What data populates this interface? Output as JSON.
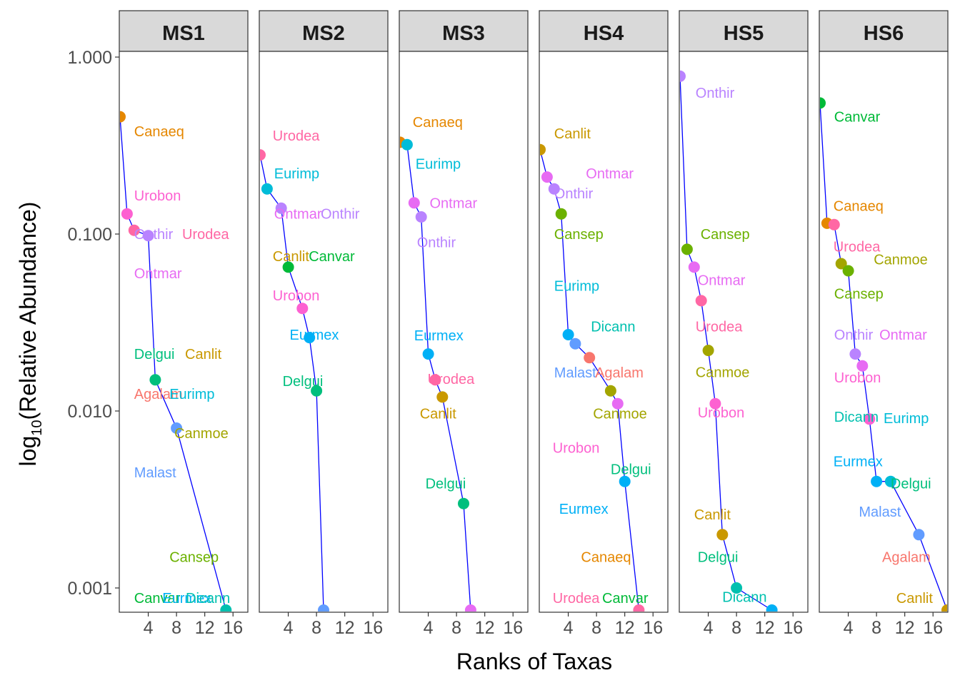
{
  "chart_data": {
    "type": "line",
    "facets": [
      "MS1",
      "MS2",
      "MS3",
      "HS4",
      "HS5",
      "HS6"
    ],
    "xlabel": "Ranks of Taxas",
    "ylabel_prefix": "log",
    "ylabel_sub": "10",
    "ylabel_main": "(Relative Abundance)",
    "yscale": "log10",
    "ylim": [
      0.00077,
      2.0
    ],
    "y_ticks": [
      0.001,
      0.01,
      0.1,
      1
    ],
    "y_tick_labels": [
      "0.001",
      "0.010",
      "0.100",
      "1.000"
    ],
    "xlim": [
      0,
      18
    ],
    "x_ticks": [
      4,
      8,
      12,
      16
    ],
    "x_tick_labels": [
      "4",
      "8",
      "12",
      "16"
    ],
    "line_color": "#0000ff",
    "taxa_colors": {
      "Agalam": "#f8766d",
      "Canaeq": "#e58700",
      "Canlit": "#c99800",
      "Canmoe": "#a3a500",
      "Cansep": "#6bb100",
      "Canvar": "#00ba38",
      "Delgui": "#00bf7d",
      "Dicann": "#00c0af",
      "Eurimp": "#00bcd8",
      "Eurmex": "#00b0f6",
      "Malast": "#619cff",
      "Onthir": "#b983ff",
      "Ontmar": "#e76bf3",
      "Urobon": "#fd61d1",
      "Urodea": "#ff67a4"
    },
    "panels": [
      {
        "facet": "MS1",
        "points": [
          {
            "taxon": "Canaeq",
            "rank": 0,
            "value": 0.46
          },
          {
            "taxon": "Urobon",
            "rank": 1,
            "value": 0.13
          },
          {
            "taxon": "Urodea",
            "rank": 2,
            "value": 0.105
          },
          {
            "taxon": "Onthir",
            "rank": 4,
            "value": 0.098
          },
          {
            "taxon": "Delgui",
            "rank": 5,
            "value": 0.015
          },
          {
            "taxon": "Malast",
            "rank": 8,
            "value": 0.008
          },
          {
            "taxon": "Dicann",
            "rank": 15,
            "value": 0.00075
          }
        ],
        "labels": [
          {
            "text": "Canaeq",
            "rank": 2,
            "value": 0.38,
            "taxon": "Canaeq"
          },
          {
            "text": "Urobon",
            "rank": 2,
            "value": 0.165,
            "taxon": "Urobon"
          },
          {
            "text": "Onthir",
            "rank": 2,
            "value": 0.1,
            "taxon": "Onthir"
          },
          {
            "text": "Urodea",
            "rank": 8.8,
            "value": 0.1,
            "taxon": "Urodea"
          },
          {
            "text": "Ontmar",
            "rank": 2,
            "value": 0.06,
            "taxon": "Ontmar"
          },
          {
            "text": "Delgui",
            "rank": 2,
            "value": 0.021,
            "taxon": "Delgui"
          },
          {
            "text": "Canlit",
            "rank": 9.2,
            "value": 0.021,
            "taxon": "Canlit"
          },
          {
            "text": "Agalam",
            "rank": 2,
            "value": 0.0125,
            "taxon": "Agalam"
          },
          {
            "text": "Eurimp",
            "rank": 7,
            "value": 0.0125,
            "taxon": "Eurimp"
          },
          {
            "text": "Canmoe",
            "rank": 7.7,
            "value": 0.0075,
            "taxon": "Canmoe"
          },
          {
            "text": "Malast",
            "rank": 2,
            "value": 0.0045,
            "taxon": "Malast"
          },
          {
            "text": "Cansep",
            "rank": 7,
            "value": 0.0015,
            "taxon": "Cansep"
          },
          {
            "text": "Canvar",
            "rank": 2,
            "value": 0.00088,
            "taxon": "Canvar"
          },
          {
            "text": "Eurmex",
            "rank": 6,
            "value": 0.00088,
            "taxon": "Eurmex"
          },
          {
            "text": "Dicann",
            "rank": 9.3,
            "value": 0.00088,
            "taxon": "Dicann"
          }
        ]
      },
      {
        "facet": "MS2",
        "points": [
          {
            "taxon": "Urodea",
            "rank": 0,
            "value": 0.28
          },
          {
            "taxon": "Eurimp",
            "rank": 1,
            "value": 0.18
          },
          {
            "taxon": "Onthir",
            "rank": 3,
            "value": 0.14
          },
          {
            "taxon": "Canvar",
            "rank": 4,
            "value": 0.065
          },
          {
            "taxon": "Urobon",
            "rank": 6,
            "value": 0.038
          },
          {
            "taxon": "Eurmex",
            "rank": 7,
            "value": 0.026
          },
          {
            "taxon": "Delgui",
            "rank": 8,
            "value": 0.013
          },
          {
            "taxon": "Malast",
            "rank": 9,
            "value": 0.00075
          }
        ],
        "labels": [
          {
            "text": "Urodea",
            "rank": 1.8,
            "value": 0.36,
            "taxon": "Urodea"
          },
          {
            "text": "Eurimp",
            "rank": 2,
            "value": 0.22,
            "taxon": "Eurimp"
          },
          {
            "text": "Ontmar",
            "rank": 2,
            "value": 0.13,
            "taxon": "Ontmar"
          },
          {
            "text": "Onthir",
            "rank": 8.6,
            "value": 0.13,
            "taxon": "Onthir"
          },
          {
            "text": "Canlit",
            "rank": 1.8,
            "value": 0.075,
            "taxon": "Canlit"
          },
          {
            "text": "Canvar",
            "rank": 6.9,
            "value": 0.075,
            "taxon": "Canvar"
          },
          {
            "text": "Urobon",
            "rank": 1.8,
            "value": 0.045,
            "taxon": "Urobon"
          },
          {
            "text": "Eurmex",
            "rank": 4.2,
            "value": 0.027,
            "taxon": "Eurmex"
          },
          {
            "text": "Delgui",
            "rank": 3.2,
            "value": 0.0148,
            "taxon": "Delgui"
          }
        ]
      },
      {
        "facet": "MS3",
        "points": [
          {
            "taxon": "Canaeq",
            "rank": 0,
            "value": 0.33
          },
          {
            "taxon": "Eurimp",
            "rank": 1,
            "value": 0.32
          },
          {
            "taxon": "Ontmar",
            "rank": 2,
            "value": 0.15
          },
          {
            "taxon": "Onthir",
            "rank": 3,
            "value": 0.125
          },
          {
            "taxon": "Eurmex",
            "rank": 4,
            "value": 0.021
          },
          {
            "taxon": "Urodea",
            "rank": 5,
            "value": 0.015
          },
          {
            "taxon": "Canlit",
            "rank": 6,
            "value": 0.012
          },
          {
            "taxon": "Delgui",
            "rank": 9,
            "value": 0.003
          },
          {
            "taxon": "Ontmar",
            "rank": 10,
            "value": 0.00075
          }
        ],
        "labels": [
          {
            "text": "Canaeq",
            "rank": 1.8,
            "value": 0.43,
            "taxon": "Canaeq"
          },
          {
            "text": "Eurimp",
            "rank": 2.2,
            "value": 0.25,
            "taxon": "Eurimp"
          },
          {
            "text": "Ontmar",
            "rank": 4.2,
            "value": 0.15,
            "taxon": "Ontmar"
          },
          {
            "text": "Onthir",
            "rank": 2.4,
            "value": 0.09,
            "taxon": "Onthir"
          },
          {
            "text": "Eurmex",
            "rank": 2,
            "value": 0.0267,
            "taxon": "Eurmex"
          },
          {
            "text": "Urodea",
            "rank": 3.9,
            "value": 0.0152,
            "taxon": "Urodea"
          },
          {
            "text": "Canlit",
            "rank": 2.8,
            "value": 0.0097,
            "taxon": "Canlit"
          },
          {
            "text": "Delgui",
            "rank": 3.6,
            "value": 0.0039,
            "taxon": "Delgui"
          }
        ]
      },
      {
        "facet": "HS4",
        "points": [
          {
            "taxon": "Canlit",
            "rank": 0,
            "value": 0.3
          },
          {
            "taxon": "Ontmar",
            "rank": 1,
            "value": 0.21
          },
          {
            "taxon": "Onthir",
            "rank": 2,
            "value": 0.18
          },
          {
            "taxon": "Cansep",
            "rank": 3,
            "value": 0.13
          },
          {
            "taxon": "Eurmex",
            "rank": 4,
            "value": 0.027
          },
          {
            "taxon": "Malast",
            "rank": 5,
            "value": 0.024
          },
          {
            "taxon": "Agalam",
            "rank": 7,
            "value": 0.02
          },
          {
            "taxon": "Canmoe",
            "rank": 10,
            "value": 0.013
          },
          {
            "taxon": "Ontmar",
            "rank": 11,
            "value": 0.011
          },
          {
            "taxon": "Eurmex",
            "rank": 12,
            "value": 0.004
          },
          {
            "taxon": "Urodea",
            "rank": 14,
            "value": 0.00075
          }
        ],
        "labels": [
          {
            "text": "Canlit",
            "rank": 2,
            "value": 0.37,
            "taxon": "Canlit"
          },
          {
            "text": "Ontmar",
            "rank": 6.5,
            "value": 0.22,
            "taxon": "Ontmar"
          },
          {
            "text": "Onthir",
            "rank": 2,
            "value": 0.17,
            "taxon": "Onthir"
          },
          {
            "text": "Cansep",
            "rank": 2,
            "value": 0.1,
            "taxon": "Cansep"
          },
          {
            "text": "Eurimp",
            "rank": 2,
            "value": 0.051,
            "taxon": "Eurimp"
          },
          {
            "text": "Dicann",
            "rank": 7.2,
            "value": 0.03,
            "taxon": "Dicann"
          },
          {
            "text": "Malast",
            "rank": 2,
            "value": 0.0165,
            "taxon": "Malast"
          },
          {
            "text": "Agalam",
            "rank": 7.8,
            "value": 0.0165,
            "taxon": "Agalam"
          },
          {
            "text": "Canmoe",
            "rank": 7.5,
            "value": 0.0097,
            "taxon": "Canmoe"
          },
          {
            "text": "Urobon",
            "rank": 1.8,
            "value": 0.0062,
            "taxon": "Urobon"
          },
          {
            "text": "Delgui",
            "rank": 10,
            "value": 0.0047,
            "taxon": "Delgui"
          },
          {
            "text": "Eurmex",
            "rank": 2.7,
            "value": 0.0028,
            "taxon": "Eurmex"
          },
          {
            "text": "Canaeq",
            "rank": 5.8,
            "value": 0.0015,
            "taxon": "Canaeq"
          },
          {
            "text": "Urodea",
            "rank": 1.8,
            "value": 0.00088,
            "taxon": "Urodea"
          },
          {
            "text": "Canvar",
            "rank": 8.8,
            "value": 0.00088,
            "taxon": "Canvar"
          }
        ]
      },
      {
        "facet": "HS5",
        "points": [
          {
            "taxon": "Onthir",
            "rank": 0,
            "value": 0.78
          },
          {
            "taxon": "Cansep",
            "rank": 1,
            "value": 0.082
          },
          {
            "taxon": "Ontmar",
            "rank": 2,
            "value": 0.065
          },
          {
            "taxon": "Urodea",
            "rank": 3,
            "value": 0.042
          },
          {
            "taxon": "Canmoe",
            "rank": 4,
            "value": 0.022
          },
          {
            "taxon": "Urobon",
            "rank": 5,
            "value": 0.011
          },
          {
            "taxon": "Canlit",
            "rank": 6,
            "value": 0.002
          },
          {
            "taxon": "Dicann",
            "rank": 8,
            "value": 0.001
          },
          {
            "taxon": "Eurmex",
            "rank": 13,
            "value": 0.00075
          }
        ],
        "labels": [
          {
            "text": "Onthir",
            "rank": 2.2,
            "value": 0.63,
            "taxon": "Onthir"
          },
          {
            "text": "Cansep",
            "rank": 2.9,
            "value": 0.1,
            "taxon": "Cansep"
          },
          {
            "text": "Ontmar",
            "rank": 2.5,
            "value": 0.055,
            "taxon": "Ontmar"
          },
          {
            "text": "Urodea",
            "rank": 2.2,
            "value": 0.03,
            "taxon": "Urodea"
          },
          {
            "text": "Canmoe",
            "rank": 2.2,
            "value": 0.0166,
            "taxon": "Canmoe"
          },
          {
            "text": "Urobon",
            "rank": 2.5,
            "value": 0.0098,
            "taxon": "Urobon"
          },
          {
            "text": "Canlit",
            "rank": 2,
            "value": 0.0026,
            "taxon": "Canlit"
          },
          {
            "text": "Delgui",
            "rank": 2.5,
            "value": 0.0015,
            "taxon": "Delgui"
          },
          {
            "text": "Dicann",
            "rank": 6,
            "value": 0.00089,
            "taxon": "Dicann"
          }
        ]
      },
      {
        "facet": "HS6",
        "points": [
          {
            "taxon": "Canvar",
            "rank": 0,
            "value": 0.55
          },
          {
            "taxon": "Canaeq",
            "rank": 1,
            "value": 0.115
          },
          {
            "taxon": "Urodea",
            "rank": 2,
            "value": 0.113
          },
          {
            "taxon": "Canmoe",
            "rank": 3,
            "value": 0.068
          },
          {
            "taxon": "Cansep",
            "rank": 4,
            "value": 0.062
          },
          {
            "taxon": "Onthir",
            "rank": 5,
            "value": 0.021
          },
          {
            "taxon": "Ontmar",
            "rank": 6,
            "value": 0.018
          },
          {
            "taxon": "Urobon",
            "rank": 7,
            "value": 0.009
          },
          {
            "taxon": "Eurmex",
            "rank": 8,
            "value": 0.004
          },
          {
            "taxon": "Eurimp",
            "rank": 10,
            "value": 0.004
          },
          {
            "taxon": "Malast",
            "rank": 14,
            "value": 0.002
          },
          {
            "taxon": "Canlit",
            "rank": 18,
            "value": 0.00075
          }
        ],
        "labels": [
          {
            "text": "Canvar",
            "rank": 2,
            "value": 0.46,
            "taxon": "Canvar"
          },
          {
            "text": "Canaeq",
            "rank": 1.9,
            "value": 0.144,
            "taxon": "Canaeq"
          },
          {
            "text": "Urodea",
            "rank": 1.9,
            "value": 0.085,
            "taxon": "Urodea"
          },
          {
            "text": "Canmoe",
            "rank": 7.6,
            "value": 0.072,
            "taxon": "Canmoe"
          },
          {
            "text": "Cansep",
            "rank": 2,
            "value": 0.046,
            "taxon": "Cansep"
          },
          {
            "text": "Onthir",
            "rank": 2,
            "value": 0.027,
            "taxon": "Onthir"
          },
          {
            "text": "Ontmar",
            "rank": 8.4,
            "value": 0.027,
            "taxon": "Ontmar"
          },
          {
            "text": "Urobon",
            "rank": 2,
            "value": 0.0155,
            "taxon": "Urobon"
          },
          {
            "text": "Dicann",
            "rank": 2,
            "value": 0.0093,
            "taxon": "Dicann"
          },
          {
            "text": "Eurimp",
            "rank": 9,
            "value": 0.0091,
            "taxon": "Eurimp"
          },
          {
            "text": "Eurmex",
            "rank": 1.9,
            "value": 0.0052,
            "taxon": "Eurmex"
          },
          {
            "text": "Delgui",
            "rank": 10,
            "value": 0.0039,
            "taxon": "Delgui"
          },
          {
            "text": "Malast",
            "rank": 5.5,
            "value": 0.0027,
            "taxon": "Malast"
          },
          {
            "text": "Agalam",
            "rank": 8.8,
            "value": 0.0015,
            "taxon": "Agalam"
          },
          {
            "text": "Canlit",
            "rank": 10.8,
            "value": 0.00088,
            "taxon": "Canlit"
          }
        ]
      }
    ]
  }
}
